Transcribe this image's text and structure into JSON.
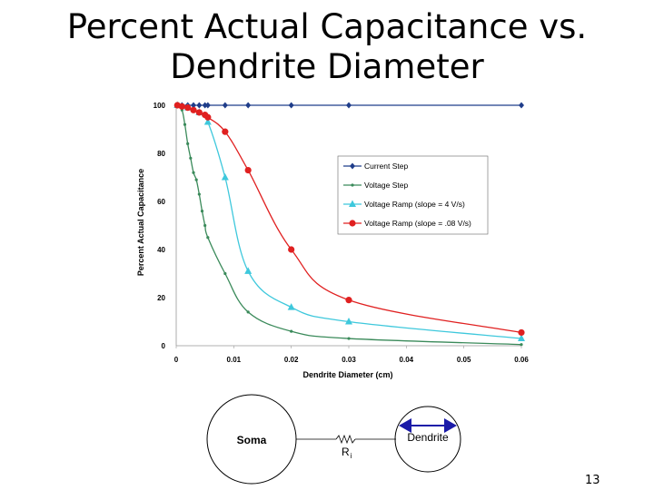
{
  "slide": {
    "title_line1": "Percent Actual Capacitance vs.",
    "title_line2": "Dendrite Diameter",
    "page_number": "13"
  },
  "chart_data": {
    "type": "line",
    "xlabel": "Dendrite Diameter (cm)",
    "ylabel": "Percent Actual Capacitance",
    "xlim": [
      0,
      0.06
    ],
    "ylim": [
      0,
      100
    ],
    "x_ticks": [
      "0",
      "0.01",
      "0.02",
      "0.03",
      "0.04",
      "0.05",
      "0.06"
    ],
    "y_ticks": [
      "0",
      "20",
      "40",
      "60",
      "80",
      "100"
    ],
    "legend_position": "upper-right",
    "series": [
      {
        "name": "Current Step",
        "color": "#1f3d8a",
        "marker": "diamond",
        "x": [
          0.0002,
          0.001,
          0.002,
          0.003,
          0.004,
          0.005,
          0.0055,
          0.0085,
          0.0125,
          0.02,
          0.03,
          0.06
        ],
        "y": [
          100,
          100,
          100,
          100,
          100,
          100,
          100,
          100,
          100,
          100,
          100,
          100
        ]
      },
      {
        "name": "Voltage Step",
        "color": "#3a8a5a",
        "marker": "small-dot",
        "x": [
          0.0002,
          0.001,
          0.0015,
          0.002,
          0.0025,
          0.003,
          0.0035,
          0.004,
          0.0045,
          0.005,
          0.0055,
          0.0085,
          0.0125,
          0.02,
          0.03,
          0.06
        ],
        "y": [
          100,
          98,
          92,
          84,
          78,
          72,
          69,
          63,
          56,
          50,
          45,
          30,
          14,
          6,
          3,
          0.5
        ]
      },
      {
        "name": "Voltage Ramp (slope = 4 V/s)",
        "color": "#3ec8dc",
        "marker": "triangle",
        "x": [
          0.0002,
          0.002,
          0.004,
          0.0055,
          0.0085,
          0.0125,
          0.02,
          0.03,
          0.06
        ],
        "y": [
          100,
          99,
          97,
          93,
          70,
          31,
          16,
          10,
          3
        ]
      },
      {
        "name": "Voltage Ramp (slope = .08 V/s)",
        "color": "#e02020",
        "marker": "circle",
        "x": [
          0.0002,
          0.001,
          0.002,
          0.003,
          0.004,
          0.005,
          0.0055,
          0.0085,
          0.0125,
          0.02,
          0.03,
          0.06
        ],
        "y": [
          100,
          99.5,
          99,
          98,
          97,
          96,
          95,
          89,
          73,
          40,
          19,
          5.5
        ]
      }
    ]
  },
  "diagram": {
    "soma_label": "Soma",
    "resistor_label": "R",
    "resistor_subscript": "i",
    "dendrite_label": "Dendrite"
  }
}
